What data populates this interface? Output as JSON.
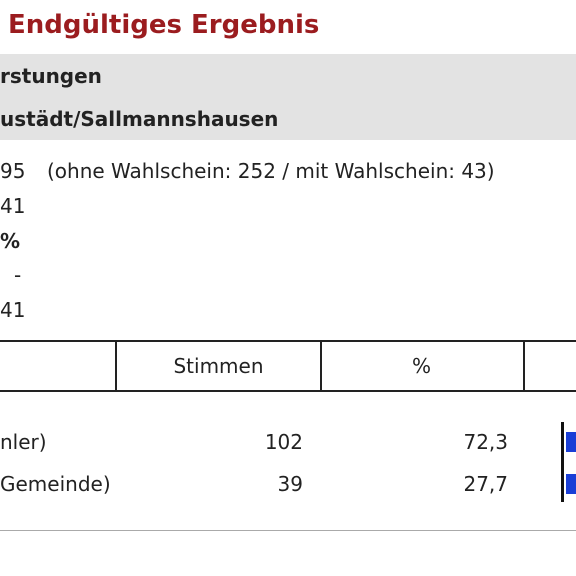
{
  "header": {
    "title": "Endgültiges Ergebnis"
  },
  "band": {
    "line1": "rstungen",
    "line2": "ustädt/Sallmannshausen"
  },
  "info": {
    "lines": [
      "95",
      "41",
      "%",
      "-",
      "41"
    ],
    "note": "(ohne Wahlschein: 252 / mit Wahlschein: 43)"
  },
  "table": {
    "columns": [
      "Stimmen",
      "%"
    ],
    "rows": [
      [
        "nler)",
        "102",
        "72,3"
      ],
      [
        "Gemeinde)",
        "39",
        "27,7"
      ]
    ]
  }
}
